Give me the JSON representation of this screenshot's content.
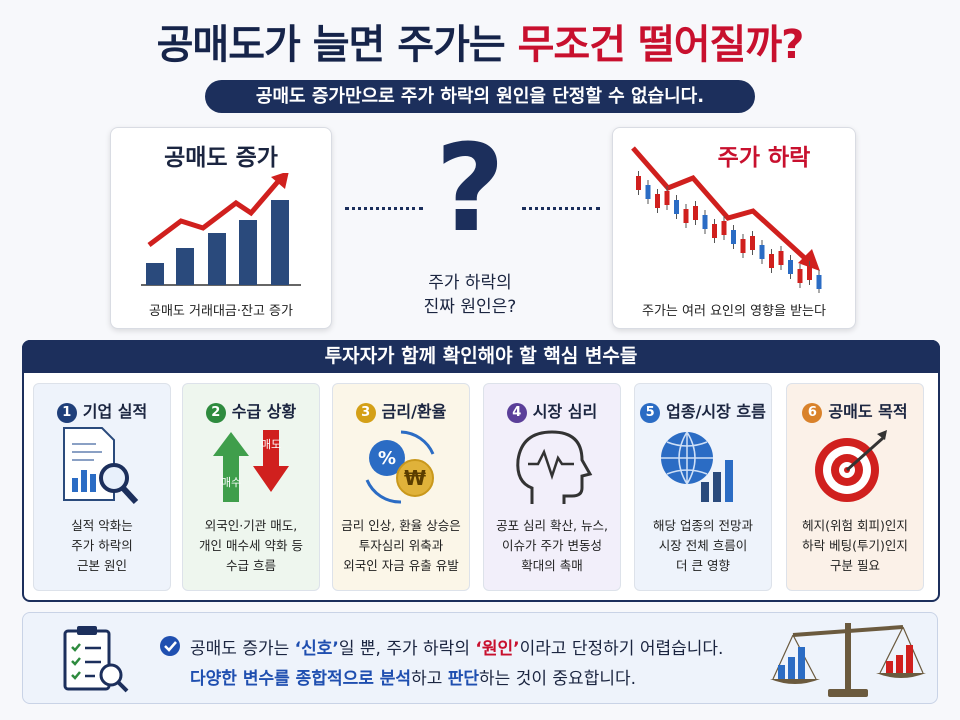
{
  "header": {
    "title_main": "공매도가 늘면 주가는",
    "title_highlight": "무조건 떨어질까?",
    "subtitle": "공매도 증가만으로 주가 하락의 원인을 단정할 수 없습니다."
  },
  "comparison": {
    "left": {
      "heading": "공매도 증가",
      "caption": "공매도 거래대금·잔고 증가"
    },
    "center": {
      "symbol": "?",
      "lines": [
        "주가 하락의",
        "진짜 원인은?"
      ]
    },
    "right": {
      "heading": "주가 하락",
      "caption": "주가는 여러 요인의 영향을 받는다"
    }
  },
  "variables": {
    "heading": "투자자가 함께 확인해야 할 핵심 변수들",
    "cards": [
      {
        "number": "1",
        "title": "기업 실적",
        "lines": [
          "실적 악화는",
          "주가 하락의",
          "근본 원인"
        ]
      },
      {
        "number": "2",
        "title": "수급 상황",
        "icon_labels": [
          "매수",
          "매도"
        ],
        "lines": [
          "외국인·기관 매도,",
          "개인 매수세 약화 등",
          "수급 흐름"
        ]
      },
      {
        "number": "3",
        "title": "금리/환율",
        "icon_labels": [
          "%",
          "₩"
        ],
        "lines": [
          "금리 인상, 환율 상승은",
          "투자심리 위축과",
          "외국인 자금 유출 유발"
        ]
      },
      {
        "number": "4",
        "title": "시장 심리",
        "lines": [
          "공포 심리 확산, 뉴스,",
          "이슈가 주가 변동성",
          "확대의 촉매"
        ]
      },
      {
        "number": "5",
        "title": "업종/시장 흐름",
        "lines": [
          "해당 업종의 전망과",
          "시장 전체 흐름이",
          "더 큰 영향"
        ]
      },
      {
        "number": "6",
        "title": "공매도 목적",
        "lines": [
          "헤지(위험 회피)인지",
          "하락 베팅(투기)인지",
          "구분 필요"
        ]
      }
    ]
  },
  "conclusion": {
    "line1": [
      "공매도 증가는 ",
      "‘신호’",
      "일 뿐, 주가 하락의 ",
      "‘원인’",
      "이라고 단정하기 어렵습니다."
    ],
    "line2": [
      "다양한 변수를 종합적으로 분석",
      "하고 ",
      "판단",
      "하는 것이 중요합니다."
    ]
  }
}
